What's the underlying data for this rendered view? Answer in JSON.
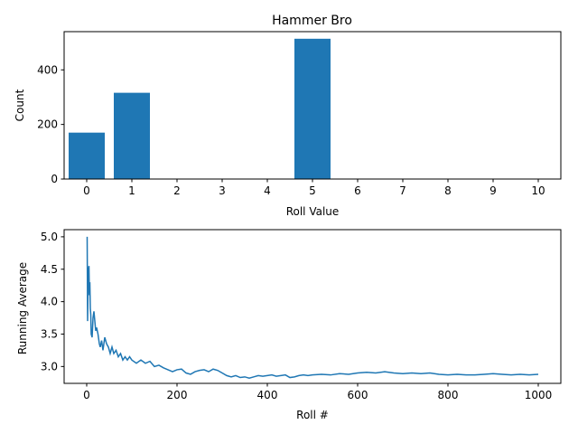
{
  "chart_data": [
    {
      "type": "bar",
      "title": "Hammer Bro",
      "xlabel": "Roll Value",
      "ylabel": "Count",
      "categories": [
        "0",
        "1",
        "2",
        "3",
        "4",
        "5",
        "6",
        "7",
        "8",
        "9",
        "10"
      ],
      "values": [
        170,
        316,
        0,
        0,
        0,
        514,
        0,
        0,
        0,
        0,
        0
      ],
      "ylim": [
        0,
        540
      ],
      "xlim": [
        -0.5,
        10.5
      ],
      "yticks": [
        0,
        200,
        400
      ],
      "bar_color": "#1f77b4",
      "grid": false
    },
    {
      "type": "line",
      "title": "",
      "xlabel": "Roll #",
      "ylabel": "Running Average",
      "xlim": [
        -50,
        1050
      ],
      "ylim": [
        2.74,
        5.11
      ],
      "xticks": [
        0,
        200,
        400,
        600,
        800,
        1000
      ],
      "yticks": [
        "3.0",
        "3.5",
        "4.0",
        "4.5",
        "5.0"
      ],
      "line_color": "#1f77b4",
      "grid": false,
      "series": [
        {
          "x": [
            1,
            2,
            3,
            4,
            5,
            6,
            7,
            8,
            9,
            10,
            12,
            14,
            16,
            18,
            20,
            22,
            25,
            28,
            30,
            33,
            36,
            40,
            44,
            48,
            52,
            56,
            60,
            65,
            70,
            75,
            80,
            85,
            90,
            95,
            100,
            110,
            120,
            130,
            140,
            150,
            160,
            170,
            180,
            190,
            200,
            210,
            220,
            230,
            240,
            250,
            260,
            270,
            280,
            290,
            300,
            310,
            320,
            330,
            340,
            350,
            360,
            370,
            380,
            390,
            400,
            410,
            420,
            430,
            440,
            450,
            460,
            470,
            480,
            490,
            500,
            520,
            540,
            560,
            580,
            600,
            620,
            640,
            660,
            680,
            700,
            720,
            740,
            760,
            780,
            800,
            820,
            840,
            860,
            880,
            900,
            920,
            940,
            960,
            980,
            1000
          ],
          "y": [
            5.0,
            3.7,
            4.2,
            4.5,
            4.55,
            4.1,
            4.3,
            3.9,
            3.8,
            3.5,
            3.45,
            3.75,
            3.85,
            3.7,
            3.55,
            3.6,
            3.5,
            3.35,
            3.3,
            3.4,
            3.25,
            3.45,
            3.35,
            3.3,
            3.2,
            3.3,
            3.2,
            3.25,
            3.15,
            3.2,
            3.1,
            3.15,
            3.1,
            3.15,
            3.1,
            3.05,
            3.1,
            3.05,
            3.08,
            3.0,
            3.02,
            2.98,
            2.95,
            2.92,
            2.95,
            2.96,
            2.9,
            2.88,
            2.92,
            2.94,
            2.95,
            2.92,
            2.96,
            2.94,
            2.9,
            2.86,
            2.84,
            2.86,
            2.83,
            2.84,
            2.82,
            2.84,
            2.86,
            2.85,
            2.86,
            2.87,
            2.85,
            2.86,
            2.87,
            2.83,
            2.84,
            2.86,
            2.87,
            2.86,
            2.87,
            2.88,
            2.87,
            2.89,
            2.88,
            2.9,
            2.91,
            2.9,
            2.92,
            2.9,
            2.89,
            2.9,
            2.89,
            2.9,
            2.88,
            2.87,
            2.88,
            2.87,
            2.87,
            2.88,
            2.89,
            2.88,
            2.87,
            2.88,
            2.87,
            2.88
          ]
        }
      ]
    }
  ]
}
